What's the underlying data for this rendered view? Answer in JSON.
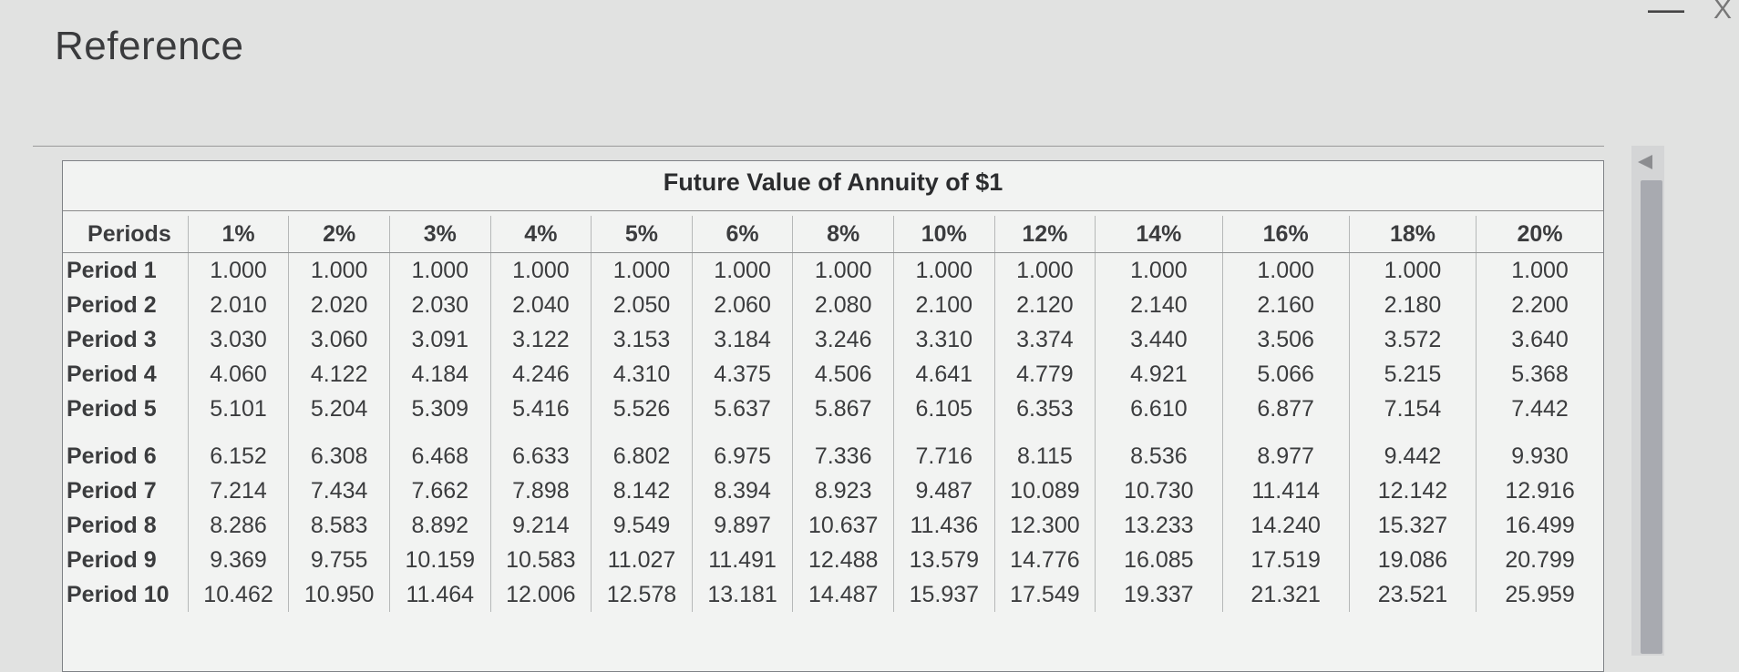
{
  "window": {
    "title": "Reference",
    "close_glyph": "—",
    "close_x": "X"
  },
  "table": {
    "title": "Future Value of Annuity of $1",
    "periods_header": "Periods",
    "rate_headers": [
      "1%",
      "2%",
      "3%",
      "4%",
      "5%",
      "6%",
      "8%",
      "10%",
      "12%",
      "14%",
      "16%",
      "18%",
      "20%"
    ],
    "rows": [
      {
        "label": "Period 1",
        "values": [
          "1.000",
          "1.000",
          "1.000",
          "1.000",
          "1.000",
          "1.000",
          "1.000",
          "1.000",
          "1.000",
          "1.000",
          "1.000",
          "1.000",
          "1.000"
        ]
      },
      {
        "label": "Period 2",
        "values": [
          "2.010",
          "2.020",
          "2.030",
          "2.040",
          "2.050",
          "2.060",
          "2.080",
          "2.100",
          "2.120",
          "2.140",
          "2.160",
          "2.180",
          "2.200"
        ]
      },
      {
        "label": "Period 3",
        "values": [
          "3.030",
          "3.060",
          "3.091",
          "3.122",
          "3.153",
          "3.184",
          "3.246",
          "3.310",
          "3.374",
          "3.440",
          "3.506",
          "3.572",
          "3.640"
        ]
      },
      {
        "label": "Period 4",
        "values": [
          "4.060",
          "4.122",
          "4.184",
          "4.246",
          "4.310",
          "4.375",
          "4.506",
          "4.641",
          "4.779",
          "4.921",
          "5.066",
          "5.215",
          "5.368"
        ]
      },
      {
        "label": "Period 5",
        "values": [
          "5.101",
          "5.204",
          "5.309",
          "5.416",
          "5.526",
          "5.637",
          "5.867",
          "6.105",
          "6.353",
          "6.610",
          "6.877",
          "7.154",
          "7.442"
        ]
      },
      {
        "label": "Period 6",
        "values": [
          "6.152",
          "6.308",
          "6.468",
          "6.633",
          "6.802",
          "6.975",
          "7.336",
          "7.716",
          "8.115",
          "8.536",
          "8.977",
          "9.442",
          "9.930"
        ]
      },
      {
        "label": "Period 7",
        "values": [
          "7.214",
          "7.434",
          "7.662",
          "7.898",
          "8.142",
          "8.394",
          "8.923",
          "9.487",
          "10.089",
          "10.730",
          "11.414",
          "12.142",
          "12.916"
        ]
      },
      {
        "label": "Period 8",
        "values": [
          "8.286",
          "8.583",
          "8.892",
          "9.214",
          "9.549",
          "9.897",
          "10.637",
          "11.436",
          "12.300",
          "13.233",
          "14.240",
          "15.327",
          "16.499"
        ]
      },
      {
        "label": "Period 9",
        "values": [
          "9.369",
          "9.755",
          "10.159",
          "10.583",
          "11.027",
          "11.491",
          "12.488",
          "13.579",
          "14.776",
          "16.085",
          "17.519",
          "19.086",
          "20.799"
        ]
      },
      {
        "label": "Period 10",
        "values": [
          "10.462",
          "10.950",
          "11.464",
          "12.006",
          "12.578",
          "13.181",
          "14.487",
          "15.937",
          "17.549",
          "19.337",
          "21.321",
          "23.521",
          "25.959"
        ]
      }
    ]
  }
}
